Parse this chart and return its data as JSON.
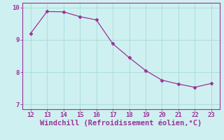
{
  "x": [
    12,
    13,
    14,
    15,
    16,
    17,
    18,
    19,
    20,
    21,
    22,
    23
  ],
  "y": [
    9.2,
    9.88,
    9.87,
    9.72,
    9.62,
    8.88,
    8.45,
    8.05,
    7.75,
    7.63,
    7.53,
    7.65
  ],
  "line_color": "#993399",
  "marker": "D",
  "marker_size": 2.5,
  "background_color": "#cff0f0",
  "grid_color": "#aadddd",
  "xlabel": "Windchill (Refroidissement éolien,°C)",
  "xlabel_color": "#993399",
  "xlabel_fontsize": 7.5,
  "tick_color": "#993399",
  "tick_fontsize": 6.5,
  "ylim": [
    6.85,
    10.15
  ],
  "xlim": [
    11.5,
    23.5
  ],
  "yticks": [
    7,
    8,
    9,
    10
  ],
  "xticks": [
    12,
    13,
    14,
    15,
    16,
    17,
    18,
    19,
    20,
    21,
    22,
    23
  ],
  "spine_color": "#993399"
}
